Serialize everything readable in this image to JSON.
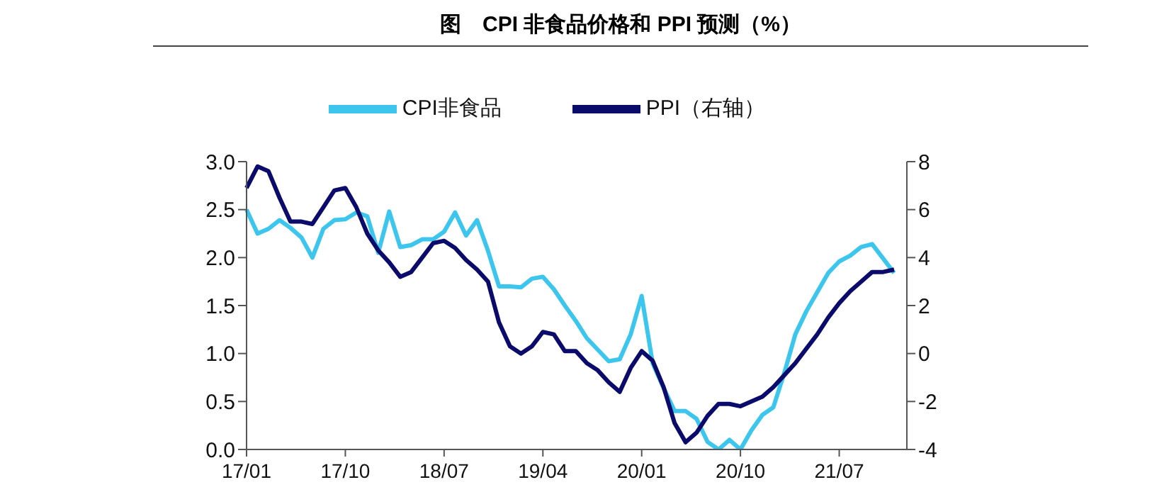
{
  "chart_data": {
    "type": "line",
    "title": "图　CPI 非食品价格和 PPI 预测（%）",
    "categories": [
      "17/01",
      null,
      null,
      null,
      null,
      null,
      null,
      null,
      null,
      "17/10",
      null,
      null,
      null,
      null,
      null,
      null,
      null,
      null,
      "18/07",
      null,
      null,
      null,
      null,
      null,
      null,
      null,
      null,
      "19/04",
      null,
      null,
      null,
      null,
      null,
      null,
      null,
      null,
      "20/01",
      null,
      null,
      null,
      null,
      null,
      null,
      null,
      null,
      "20/10",
      null,
      null,
      null,
      null,
      null,
      null,
      null,
      null,
      "21/07",
      null,
      null,
      null,
      null,
      null
    ],
    "series": [
      {
        "name": "CPI非食品",
        "color": "#3cc6ee",
        "values": [
          2.5,
          2.25,
          2.3,
          2.39,
          2.31,
          2.21,
          2.0,
          2.3,
          2.39,
          2.4,
          2.47,
          2.43,
          2.05,
          2.48,
          2.11,
          2.13,
          2.19,
          2.19,
          2.27,
          2.47,
          2.23,
          2.39,
          2.07,
          1.7,
          1.7,
          1.69,
          1.78,
          1.8,
          1.67,
          1.5,
          1.34,
          1.16,
          1.04,
          0.92,
          0.94,
          1.2,
          1.6,
          0.9,
          0.64,
          0.4,
          0.4,
          0.32,
          0.08,
          0.0,
          0.1,
          0.0,
          0.2,
          0.36,
          0.44,
          0.8,
          1.2,
          1.44,
          1.64,
          1.84,
          1.96,
          2.02,
          2.11,
          2.14,
          1.99,
          1.84
        ]
      },
      {
        "name": "PPI（右轴）",
        "color": "#0b0b6b",
        "axis": "y2",
        "values": [
          6.9,
          7.8,
          7.6,
          6.5,
          5.5,
          5.5,
          5.4,
          6.1,
          6.8,
          6.9,
          6.1,
          5.0,
          4.3,
          3.8,
          3.2,
          3.4,
          4.0,
          4.6,
          4.7,
          4.4,
          3.9,
          3.5,
          3.0,
          1.3,
          0.3,
          0.0,
          0.3,
          0.9,
          0.8,
          0.1,
          0.1,
          -0.4,
          -0.7,
          -1.2,
          -1.6,
          -0.6,
          0.1,
          -0.3,
          -1.4,
          -2.9,
          -3.7,
          -3.3,
          -2.6,
          -2.1,
          -2.1,
          -2.2,
          -2.0,
          -1.8,
          -1.4,
          -0.9,
          -0.4,
          0.2,
          0.8,
          1.5,
          2.1,
          2.6,
          3.0,
          3.4,
          3.4,
          3.5
        ]
      }
    ],
    "ylim": [
      0,
      3
    ],
    "yticks": [
      {
        "value": 0,
        "label": "0.0"
      },
      {
        "value": 0.5,
        "label": "0.5"
      },
      {
        "value": 1,
        "label": "1.0"
      },
      {
        "value": 1.5,
        "label": "1.5"
      },
      {
        "value": 2,
        "label": "2.0"
      },
      {
        "value": 2.5,
        "label": "2.5"
      },
      {
        "value": 3,
        "label": "3.0"
      }
    ],
    "y2lim": [
      -4,
      8
    ],
    "y2ticks": [
      -4,
      -2,
      0,
      2,
      4,
      6,
      8
    ],
    "grid": false,
    "legend": "top",
    "marker": "none",
    "line_style": "solid"
  }
}
